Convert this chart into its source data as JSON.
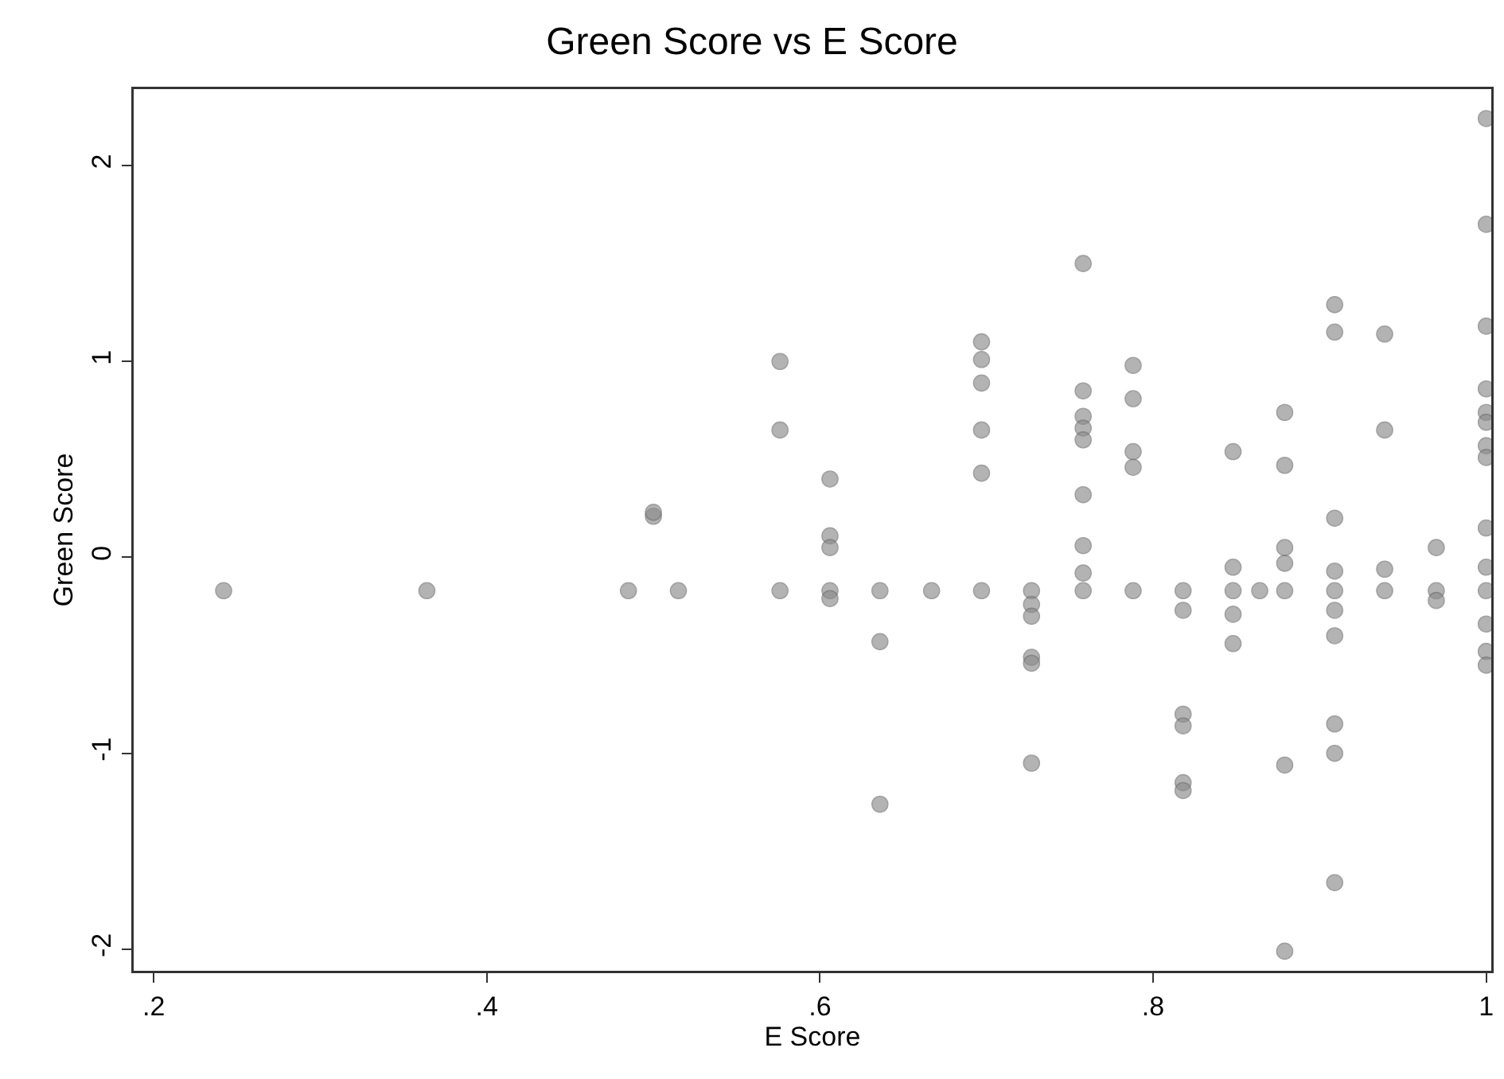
{
  "chart_data": {
    "type": "scatter",
    "title": "Green Score vs E Score",
    "xlabel": "E Score",
    "ylabel": "Green Score",
    "xlim": [
      0.188,
      1.003
    ],
    "ylim": [
      -2.11,
      2.39
    ],
    "xticks": [
      {
        "value": 0.2,
        "label": ".2"
      },
      {
        "value": 0.4,
        "label": ".4"
      },
      {
        "value": 0.6,
        "label": ".6"
      },
      {
        "value": 0.8,
        "label": ".8"
      },
      1
    ],
    "yticks": [
      -2,
      -1,
      0,
      1,
      2
    ],
    "grid": false,
    "marker": "circle",
    "series": [
      {
        "color": "#8c8c8c",
        "x": [
          0.242,
          0.364,
          0.485,
          0.5,
          0.5,
          0.515,
          0.576,
          0.576,
          0.576,
          0.606,
          0.606,
          0.606,
          0.606,
          0.606,
          0.636,
          0.636,
          0.636,
          0.667,
          0.697,
          0.697,
          0.697,
          0.697,
          0.697,
          0.697,
          0.727,
          0.727,
          0.727,
          0.727,
          0.727,
          0.727,
          0.758,
          0.758,
          0.758,
          0.758,
          0.758,
          0.758,
          0.758,
          0.758,
          0.758,
          0.788,
          0.788,
          0.788,
          0.788,
          0.788,
          0.818,
          0.818,
          0.818,
          0.818,
          0.818,
          0.818,
          0.848,
          0.848,
          0.848,
          0.848,
          0.848,
          0.864,
          0.879,
          0.879,
          0.879,
          0.879,
          0.879,
          0.879,
          0.879,
          0.909,
          0.909,
          0.909,
          0.909,
          0.909,
          0.909,
          0.909,
          0.909,
          0.909,
          0.909,
          0.939,
          0.939,
          0.939,
          0.939,
          0.97,
          0.97,
          0.97,
          1,
          1,
          1,
          1,
          1,
          1,
          1,
          1,
          1,
          1,
          1,
          1,
          1,
          1
        ],
        "values": [
          -0.17,
          -0.17,
          -0.17,
          0.21,
          0.23,
          -0.17,
          1.0,
          0.65,
          -0.17,
          0.4,
          0.11,
          0.05,
          -0.17,
          -0.21,
          -0.17,
          -0.43,
          -1.26,
          -0.17,
          1.1,
          1.01,
          0.89,
          0.65,
          0.43,
          -0.17,
          -0.17,
          -0.24,
          -0.3,
          -0.51,
          -0.54,
          -1.05,
          1.5,
          0.85,
          0.72,
          0.66,
          0.6,
          0.32,
          0.06,
          -0.08,
          -0.17,
          0.98,
          0.81,
          0.54,
          0.46,
          -0.17,
          -0.17,
          -0.27,
          -0.8,
          -0.86,
          -1.15,
          -1.19,
          0.54,
          -0.05,
          -0.17,
          -0.29,
          -0.44,
          -0.17,
          0.74,
          0.47,
          0.05,
          -0.03,
          -0.17,
          -1.06,
          -2.01,
          1.29,
          1.15,
          0.2,
          -0.07,
          -0.17,
          -0.27,
          -0.4,
          -0.85,
          -1.0,
          -1.66,
          1.14,
          0.65,
          -0.06,
          -0.17,
          0.05,
          -0.17,
          -0.22,
          2.24,
          1.7,
          1.18,
          0.86,
          0.74,
          0.69,
          0.57,
          0.51,
          0.15,
          -0.05,
          -0.17,
          -0.34,
          -0.48,
          -0.55
        ]
      }
    ]
  }
}
